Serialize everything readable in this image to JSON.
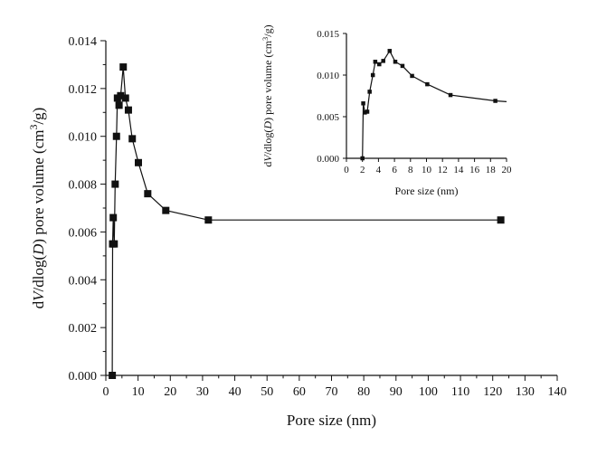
{
  "chart_data": [
    {
      "type": "line",
      "xlabel": "Pore size (nm)",
      "ylabel": "dV/dlog(D) pore volume (cm³/g)",
      "xlim": [
        0,
        140
      ],
      "ylim": [
        0,
        0.014
      ],
      "x_ticks": [
        "0",
        "10",
        "20",
        "30",
        "40",
        "50",
        "60",
        "70",
        "80",
        "90",
        "100",
        "110",
        "120",
        "130",
        "140"
      ],
      "y_ticks": [
        "0.000",
        "0.002",
        "0.004",
        "0.006",
        "0.008",
        "0.010",
        "0.012",
        "0.014"
      ],
      "marker": "square",
      "series": [
        {
          "x": [
            2.0,
            2.1,
            2.3,
            2.6,
            2.9,
            3.3,
            3.6,
            4.1,
            4.6,
            5.4,
            6.1,
            7.0,
            8.2,
            10.1,
            13.0,
            18.6,
            31.8,
            122.5
          ],
          "y": [
            0.0,
            0.0055,
            0.0066,
            0.0055,
            0.008,
            0.01,
            0.0116,
            0.0113,
            0.0117,
            0.0129,
            0.0116,
            0.0111,
            0.0099,
            0.0089,
            0.0076,
            0.0069,
            0.0065,
            0.0065
          ]
        }
      ]
    },
    {
      "type": "line",
      "xlabel": "Pore size (nm)",
      "ylabel": "dV/dlog(D) pore volume (cm³/g)",
      "xlim": [
        0,
        20
      ],
      "ylim": [
        0,
        0.015
      ],
      "x_ticks": [
        "0",
        "2",
        "4",
        "6",
        "8",
        "10",
        "12",
        "14",
        "16",
        "18",
        "20"
      ],
      "y_ticks": [
        "0.000",
        "0.005",
        "0.010",
        "0.015"
      ],
      "marker": "square",
      "series": [
        {
          "x": [
            2.0,
            2.1,
            2.3,
            2.6,
            2.9,
            3.3,
            3.6,
            4.1,
            4.6,
            5.4,
            6.1,
            7.0,
            8.2,
            10.1,
            13.0,
            18.6,
            20.0
          ],
          "y": [
            0.0,
            0.0066,
            0.0055,
            0.0056,
            0.008,
            0.01,
            0.0116,
            0.0113,
            0.0117,
            0.0129,
            0.0116,
            0.0111,
            0.0099,
            0.0089,
            0.0076,
            0.0069,
            0.0068
          ]
        }
      ]
    }
  ]
}
